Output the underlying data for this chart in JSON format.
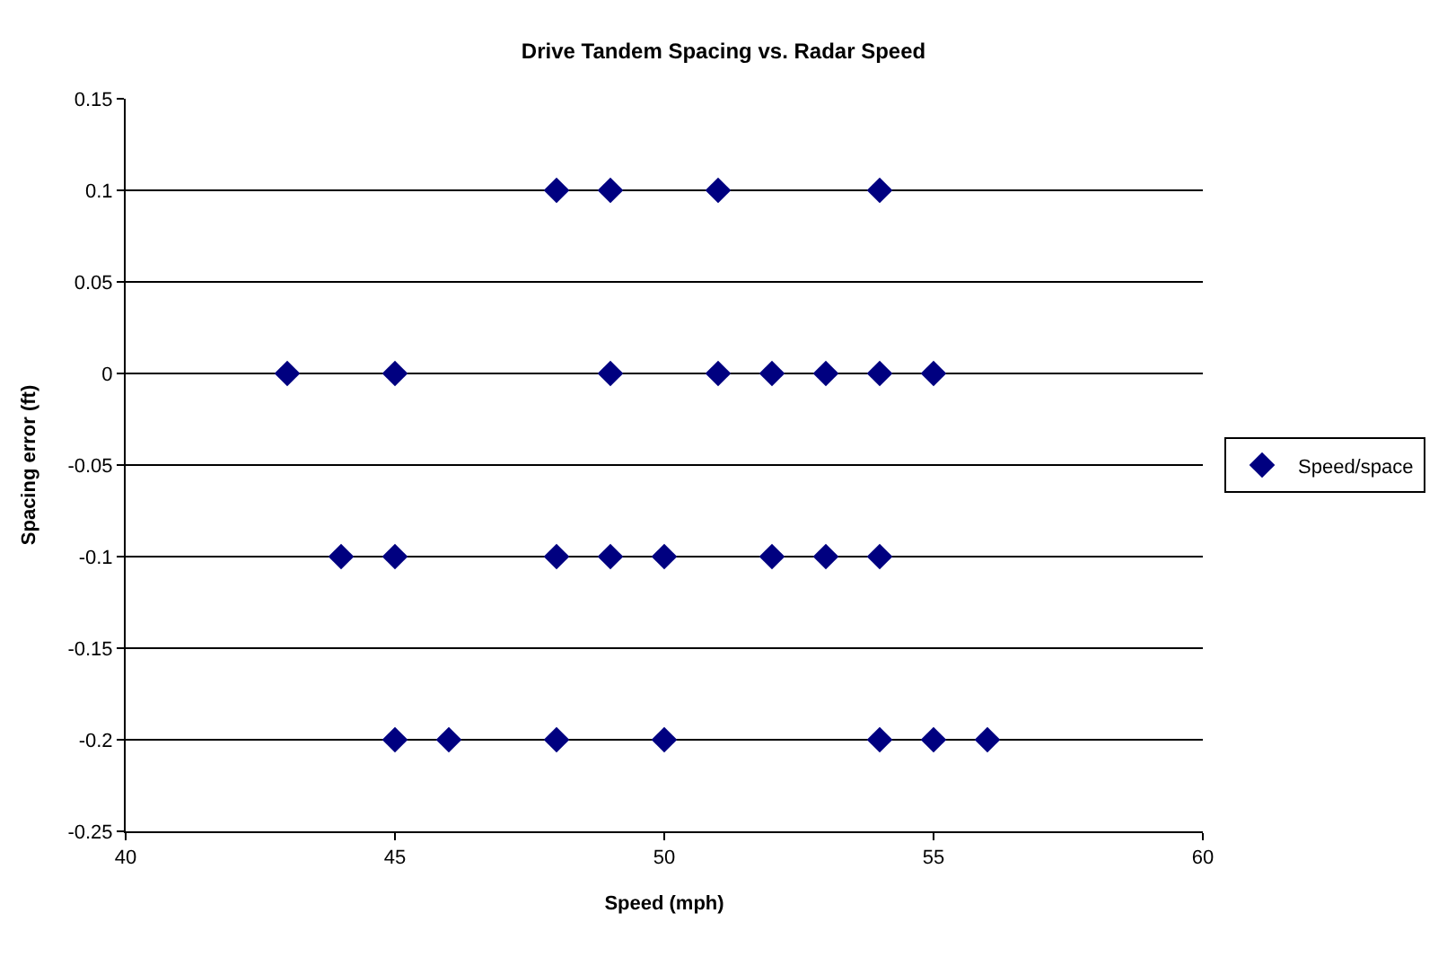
{
  "chart_data": {
    "type": "scatter",
    "title": "Drive Tandem Spacing vs. Radar Speed",
    "xlabel": "Speed (mph)",
    "ylabel": "Spacing error (ft)",
    "series": [
      {
        "name": "Speed/space",
        "color": "#000080",
        "x": [
          48,
          49,
          51,
          54,
          43,
          45,
          49,
          51,
          52,
          53,
          54,
          55,
          44,
          45,
          48,
          49,
          50,
          52,
          53,
          54,
          45,
          46,
          48,
          50,
          54,
          55,
          56
        ],
        "values": [
          0.1,
          0.1,
          0.1,
          0.1,
          0,
          0,
          0,
          0,
          0,
          0,
          0,
          0,
          -0.1,
          -0.1,
          -0.1,
          -0.1,
          -0.1,
          -0.1,
          -0.1,
          -0.1,
          -0.2,
          -0.2,
          -0.2,
          -0.2,
          -0.2,
          -0.2,
          -0.2
        ]
      }
    ],
    "xlim": [
      40,
      60
    ],
    "xticks": [
      40,
      45,
      50,
      55,
      60
    ],
    "ylim": [
      -0.25,
      0.15
    ],
    "yticks": [
      -0.25,
      -0.2,
      -0.15,
      -0.1,
      -0.05,
      0,
      0.05,
      0.1,
      0.15
    ],
    "grid": "y",
    "legend": "right",
    "marker": "diamond"
  }
}
